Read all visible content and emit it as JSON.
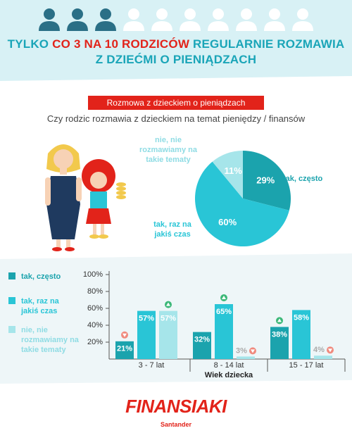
{
  "header": {
    "title_parts": [
      "TYLKO",
      "CO 3 NA 10 RODZICÓW",
      "REGULARNIE ROZMAWIA",
      "Z DZIEĆMI O PIENIĄDZACH"
    ],
    "banner": "Rozmowa z dzieckiem o pieniądzach"
  },
  "chart_data": [
    {
      "type": "pie",
      "title": "Czy rodzic rozmawia z dzieckiem na temat pieniędzy / finansów",
      "categories": [
        "tak, często",
        "tak, raz na jakiś czas",
        "nie, nie rozmawiamy na takie tematy"
      ],
      "values": [
        29,
        60,
        11
      ],
      "value_labels": [
        "29%",
        "60%",
        "11%"
      ],
      "colors": [
        "#1ba3ad",
        "#29c5d6",
        "#a6e5ea"
      ]
    },
    {
      "type": "bar",
      "categories": [
        "3 - 7 lat",
        "8 - 14 lat",
        "15 - 17 lat"
      ],
      "x_label": "Wiek dziecka",
      "series": [
        {
          "name": "tak, często",
          "color": "#1ba3ad",
          "values": [
            21,
            32,
            38
          ],
          "value_labels": [
            "21%",
            "32%",
            "38%"
          ],
          "trend": [
            "down",
            null,
            "up"
          ]
        },
        {
          "name": "tak, raz na jakiś czas",
          "color": "#29c5d6",
          "values": [
            57,
            65,
            58
          ],
          "value_labels": [
            "57%",
            "65%",
            "58%"
          ],
          "trend": [
            null,
            "up",
            null
          ]
        },
        {
          "name": "nie, nie rozmawiamy na takie tematy",
          "color": "#a6e5ea",
          "values": [
            57,
            3,
            4
          ],
          "value_labels": [
            "57%",
            "3%",
            "4%"
          ],
          "trend": [
            "up",
            "down",
            "down"
          ]
        }
      ],
      "ylim": [
        0,
        100
      ],
      "yticks": [
        {
          "value": 20,
          "label": "20%"
        },
        {
          "value": 40,
          "label": "40%"
        },
        {
          "value": 60,
          "label": "60%"
        },
        {
          "value": 80,
          "label": "80%"
        },
        {
          "value": 100,
          "label": "100%"
        }
      ]
    }
  ],
  "footer": {
    "logo": "FINANSIAKI",
    "brand": "Santander"
  }
}
